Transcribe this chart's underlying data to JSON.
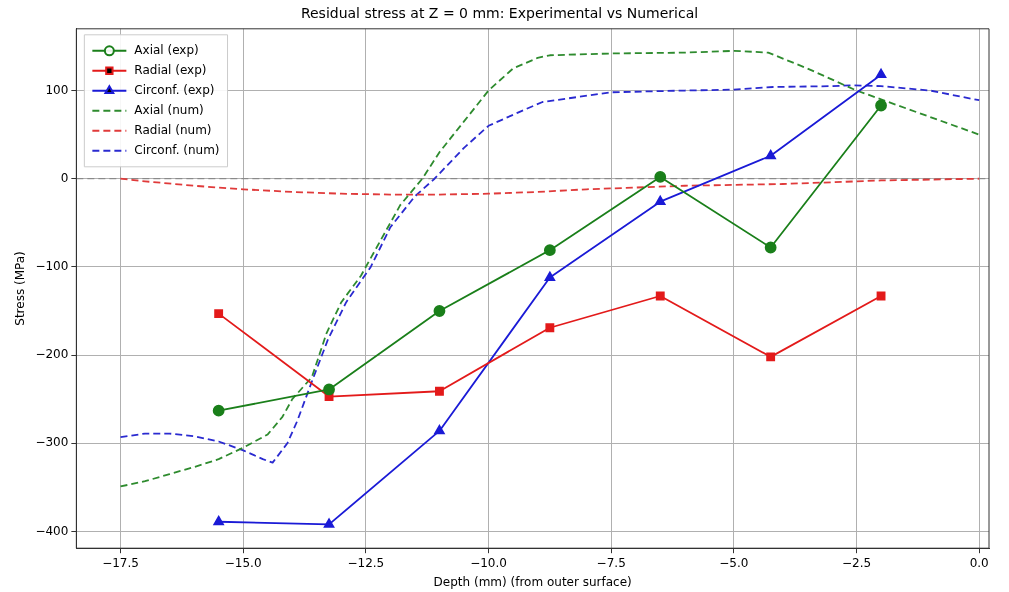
{
  "chart_data": {
    "type": "line",
    "title": "Residual stress at Z = 0 mm: Experimental vs Numerical",
    "xlabel": "Depth (mm) (from outer surface)",
    "ylabel": "Stress (MPa)",
    "xlim": [
      -18.4,
      0.2
    ],
    "xticks": [
      {
        "value": -17.5,
        "label": "−17.5"
      },
      {
        "value": -15,
        "label": "−15.0"
      },
      {
        "value": -12.5,
        "label": "−12.5"
      },
      {
        "value": -10,
        "label": "−10.0"
      },
      {
        "value": -7.5,
        "label": "−7.5"
      },
      {
        "value": -5,
        "label": "−5.0"
      },
      {
        "value": -2.5,
        "label": "−2.5"
      },
      {
        "value": 0,
        "label": "0.0"
      }
    ],
    "ylim": [
      -419,
      170
    ],
    "yticks": [
      {
        "value": -400,
        "label": "−400"
      },
      {
        "value": -300,
        "label": "−300"
      },
      {
        "value": -200,
        "label": "−200"
      },
      {
        "value": -100,
        "label": "−100"
      },
      0,
      100
    ],
    "grid": true,
    "legend": "top left",
    "ref_lines": [
      {
        "axis": "y",
        "value": 0,
        "color": "#808080",
        "line_style": "dashed"
      }
    ],
    "series": [
      {
        "name": "Axial (exp)",
        "color": "#1a7f1a",
        "marker": "circle",
        "line_style": "solid",
        "x": [
          -15.5,
          -13.25,
          -11,
          -8.75,
          -6.5,
          -4.25,
          -2
        ],
        "values": [
          -263,
          -239,
          -150,
          -81,
          2,
          -78,
          83
        ]
      },
      {
        "name": "Radial (exp)",
        "color": "#e31a1a",
        "marker": "square",
        "line_style": "solid",
        "x": [
          -15.5,
          -13.25,
          -11,
          -8.75,
          -6.5,
          -4.25,
          -2
        ],
        "values": [
          -153,
          -247,
          -241,
          -169,
          -133,
          -202,
          -133
        ]
      },
      {
        "name": "Circonf. (exp)",
        "color": "#1a1ad6",
        "marker": "triangle",
        "line_style": "solid",
        "x": [
          -15.5,
          -13.25,
          -11,
          -8.75,
          -6.5,
          -4.25,
          -2
        ],
        "values": [
          -389,
          -392,
          -286,
          -112,
          -26,
          26,
          118
        ]
      },
      {
        "name": "Axial (num)",
        "color": "#2e8b2e",
        "marker": "none",
        "line_style": "dashed",
        "x": [
          -17.5,
          -17,
          -16.5,
          -16,
          -15.5,
          -15,
          -14.5,
          -14.2,
          -14,
          -13.6,
          -13.3,
          -13,
          -12.6,
          -12.2,
          -11.8,
          -11.35,
          -11,
          -10.5,
          -10,
          -9.5,
          -9,
          -8.75,
          -7.5,
          -6,
          -5,
          -4.3,
          -3.5,
          -2.5,
          -2,
          -1,
          0
        ],
        "values": [
          -349,
          -343,
          -335,
          -327,
          -318,
          -305,
          -290,
          -270,
          -250,
          -225,
          -175,
          -140,
          -110,
          -70,
          -30,
          0,
          30,
          65,
          100,
          125,
          137,
          140,
          142,
          143,
          145,
          143,
          125,
          100,
          90,
          70,
          50
        ]
      },
      {
        "name": "Radial (num)",
        "color": "#e03a3a",
        "marker": "none",
        "line_style": "dashed",
        "x": [
          -17.5,
          -17,
          -16,
          -15,
          -14,
          -13,
          -12,
          -11,
          -10,
          -9,
          -8,
          -7,
          -6,
          -5,
          -4,
          -3,
          -2,
          -1,
          0
        ],
        "values": [
          0,
          -3,
          -8,
          -12,
          -15,
          -17,
          -18,
          -18,
          -17,
          -15,
          -12,
          -10,
          -8,
          -7,
          -6,
          -4,
          -2,
          -1,
          0
        ]
      },
      {
        "name": "Circonf. (num)",
        "color": "#2a2ad0",
        "marker": "none",
        "line_style": "dashed",
        "x": [
          -17.5,
          -17,
          -16.5,
          -16,
          -15.5,
          -15,
          -14.6,
          -14.4,
          -14.1,
          -13.9,
          -13.6,
          -13.27,
          -12.9,
          -12.4,
          -12,
          -11.5,
          -11.1,
          -10.5,
          -10,
          -9.4,
          -8.9,
          -7.5,
          -6,
          -5,
          -4.2,
          -3,
          -2.6,
          -2,
          -1,
          0
        ],
        "values": [
          -293,
          -289,
          -289,
          -292,
          -298,
          -308,
          -318,
          -322,
          -300,
          -275,
          -230,
          -182,
          -140,
          -100,
          -55,
          -20,
          0,
          35,
          60,
          75,
          87,
          98,
          100,
          101,
          104,
          105,
          106,
          105,
          100,
          89
        ]
      }
    ]
  }
}
